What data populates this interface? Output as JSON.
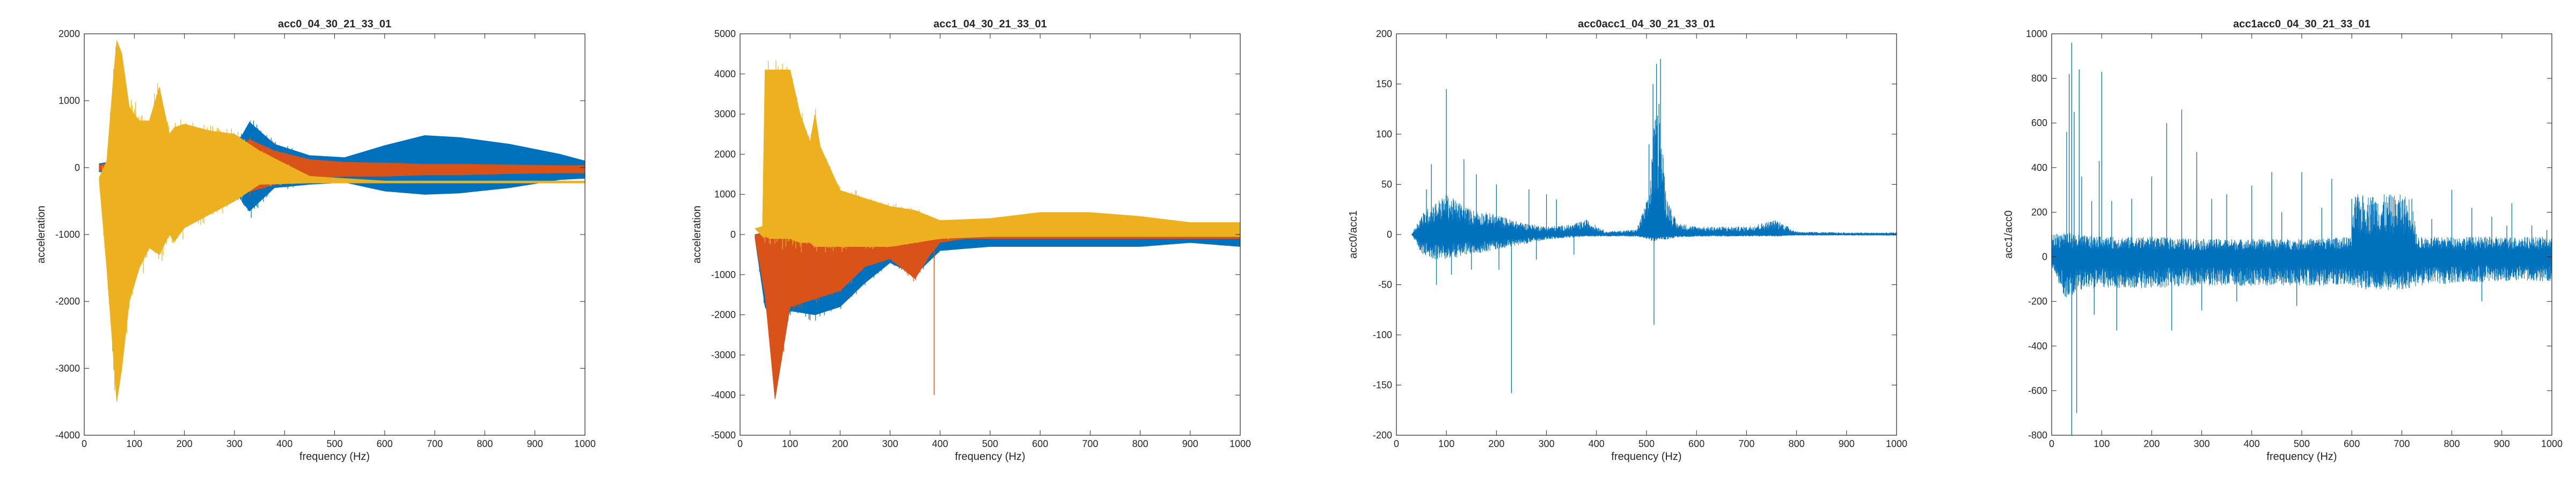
{
  "chart_data": [
    {
      "type": "area",
      "title": "acc0_04_30_21_33_01",
      "xlabel": "frequency (Hz)",
      "ylabel": "acceleration",
      "xlim": [
        0,
        1000
      ],
      "ylim": [
        -4000,
        2000
      ],
      "xticks": [
        0,
        100,
        200,
        300,
        400,
        500,
        600,
        700,
        800,
        900,
        1000
      ],
      "yticks": [
        -4000,
        -3000,
        -2000,
        -1000,
        0,
        1000,
        2000
      ],
      "grid": false,
      "colors": [
        "#0072BD",
        "#D95319",
        "#EDB120"
      ],
      "series": [
        {
          "x": [
            30,
            50,
            80,
            120,
            200,
            300,
            330,
            380,
            450,
            520,
            600,
            680,
            750,
            850,
            950,
            1000
          ],
          "upper": [
            60,
            80,
            250,
            250,
            220,
            280,
            680,
            350,
            180,
            150,
            330,
            480,
            450,
            350,
            200,
            100
          ],
          "lower": [
            -60,
            -80,
            -250,
            -250,
            -220,
            -350,
            -650,
            -300,
            -250,
            -220,
            -350,
            -400,
            -380,
            -300,
            -180,
            -160
          ]
        },
        {
          "x": [
            30,
            50,
            80,
            120,
            200,
            300,
            330,
            380,
            450,
            520,
            600,
            680,
            750,
            850,
            950,
            1000
          ],
          "upper": [
            40,
            60,
            200,
            200,
            220,
            250,
            420,
            250,
            120,
            80,
            70,
            50,
            50,
            40,
            30,
            30
          ],
          "lower": [
            -40,
            -60,
            -200,
            -200,
            -200,
            -200,
            -360,
            -250,
            -160,
            -130,
            -130,
            -110,
            -110,
            -90,
            -80,
            -80
          ]
        },
        {
          "x": [
            30,
            45,
            60,
            65,
            75,
            90,
            110,
            130,
            150,
            170,
            180,
            200,
            250,
            300,
            350,
            450,
            600,
            800,
            1000
          ],
          "upper": [
            -150,
            100,
            1500,
            1900,
            1700,
            900,
            700,
            700,
            1200,
            500,
            600,
            650,
            550,
            500,
            250,
            -130,
            -200,
            -200,
            -200
          ],
          "lower": [
            -200,
            -1500,
            -3000,
            -3500,
            -3000,
            -2000,
            -1500,
            -1200,
            -1300,
            -1000,
            -1100,
            -900,
            -700,
            -500,
            -250,
            -230,
            -230,
            -230,
            -230
          ]
        }
      ]
    },
    {
      "type": "area",
      "title": "acc1_04_30_21_33_01",
      "xlabel": "frequency (Hz)",
      "ylabel": "acceleration",
      "xlim": [
        0,
        1000
      ],
      "ylim": [
        -5000,
        5000
      ],
      "xticks": [
        0,
        100,
        200,
        300,
        400,
        500,
        600,
        700,
        800,
        900,
        1000
      ],
      "yticks": [
        -5000,
        -4000,
        -3000,
        -2000,
        -1000,
        0,
        1000,
        2000,
        3000,
        4000,
        5000
      ],
      "grid": false,
      "colors": [
        "#0072BD",
        "#D95319",
        "#EDB120"
      ],
      "series": [
        {
          "x": [
            30,
            50,
            80,
            100,
            150,
            200,
            250,
            300,
            350,
            400,
            500,
            600,
            700,
            800,
            900,
            1000
          ],
          "upper": [
            0,
            50,
            50,
            50,
            50,
            50,
            50,
            50,
            50,
            50,
            0,
            -50,
            -80,
            -50,
            -30,
            -50
          ],
          "lower": [
            -100,
            -1800,
            -2500,
            -1900,
            -2000,
            -1800,
            -1200,
            -700,
            -1000,
            -400,
            -300,
            -300,
            -300,
            -300,
            -200,
            -300
          ]
        },
        {
          "x": [
            30,
            50,
            70,
            100,
            150,
            200,
            250,
            300,
            350,
            380,
            400,
            450,
            500,
            600,
            700,
            800,
            900,
            1000
          ],
          "upper": [
            0,
            0,
            0,
            0,
            0,
            0,
            0,
            0,
            50,
            50,
            20,
            20,
            50,
            50,
            50,
            50,
            50,
            50
          ],
          "lower": [
            -100,
            -1500,
            -4100,
            -1800,
            -1600,
            -1400,
            -800,
            -600,
            -1100,
            -500,
            -200,
            -100,
            -100,
            -100,
            -100,
            -100,
            -100,
            -100
          ],
          "spike": [
            388,
            -4000
          ]
        },
        {
          "x": [
            30,
            45,
            50,
            60,
            100,
            120,
            140,
            150,
            160,
            200,
            250,
            300,
            350,
            400,
            500,
            600,
            700,
            800,
            900,
            1000
          ],
          "upper": [
            150,
            200,
            4100,
            4100,
            4100,
            3000,
            2300,
            3000,
            2200,
            1100,
            900,
            700,
            600,
            350,
            400,
            550,
            550,
            450,
            300,
            300
          ],
          "lower": [
            150,
            -50,
            -50,
            -100,
            -100,
            -200,
            -200,
            -300,
            -300,
            -300,
            -300,
            -300,
            -200,
            -100,
            -50,
            -50,
            -50,
            -50,
            -50,
            -50
          ]
        }
      ]
    },
    {
      "type": "line",
      "title": "acc0acc1_04_30_21_33_01",
      "xlabel": "frequency (Hz)",
      "ylabel": "acc0/acc1",
      "xlim": [
        0,
        1000
      ],
      "ylim": [
        -200,
        200
      ],
      "xticks": [
        0,
        100,
        200,
        300,
        400,
        500,
        600,
        700,
        800,
        900,
        1000
      ],
      "yticks": [
        -200,
        -150,
        -100,
        -50,
        0,
        50,
        100,
        150,
        200
      ],
      "grid": false,
      "colors": [
        "#0072BD"
      ],
      "envelope": {
        "x": [
          30,
          50,
          70,
          100,
          150,
          200,
          250,
          300,
          350,
          380,
          420,
          480,
          505,
          515,
          525,
          540,
          560,
          600,
          700,
          760,
          800,
          900,
          1000
        ],
        "upper": [
          0,
          20,
          30,
          40,
          25,
          20,
          12,
          8,
          10,
          15,
          3,
          5,
          40,
          110,
          130,
          40,
          12,
          8,
          8,
          15,
          3,
          2,
          2
        ],
        "lower": [
          0,
          -20,
          -25,
          -25,
          -20,
          -15,
          -10,
          -5,
          -3,
          -2,
          -2,
          -2,
          -5,
          -8,
          -5,
          -5,
          -3,
          -2,
          -2,
          -2,
          -1,
          -1,
          -1
        ]
      },
      "spikes": [
        [
          60,
          45
        ],
        [
          70,
          70
        ],
        [
          80,
          -50
        ],
        [
          100,
          145
        ],
        [
          110,
          -40
        ],
        [
          135,
          75
        ],
        [
          150,
          -35
        ],
        [
          160,
          60
        ],
        [
          200,
          50
        ],
        [
          205,
          -35
        ],
        [
          230,
          -158
        ],
        [
          265,
          45
        ],
        [
          280,
          -25
        ],
        [
          300,
          40
        ],
        [
          320,
          35
        ],
        [
          355,
          -20
        ],
        [
          505,
          90
        ],
        [
          513,
          150
        ],
        [
          520,
          170
        ],
        [
          525,
          130
        ],
        [
          528,
          175
        ],
        [
          515,
          -90
        ]
      ]
    },
    {
      "type": "line",
      "title": "acc1acc0_04_30_21_33_01",
      "xlabel": "frequency (Hz)",
      "ylabel": "acc1/acc0",
      "xlim": [
        0,
        1000
      ],
      "ylim": [
        -800,
        1000
      ],
      "xticks": [
        0,
        100,
        200,
        300,
        400,
        500,
        600,
        700,
        800,
        900,
        1000
      ],
      "yticks": [
        -800,
        -600,
        -400,
        -200,
        0,
        200,
        400,
        600,
        800,
        1000
      ],
      "grid": false,
      "colors": [
        "#0072BD"
      ],
      "envelope": {
        "x": [
          0,
          30,
          50,
          100,
          200,
          300,
          400,
          500,
          600,
          605,
          700,
          720,
          730,
          800,
          900,
          1000
        ],
        "upper": [
          100,
          120,
          100,
          90,
          90,
          80,
          80,
          80,
          90,
          280,
          280,
          270,
          90,
          90,
          90,
          90
        ],
        "lower": [
          -50,
          -200,
          -150,
          -140,
          -140,
          -130,
          -130,
          -130,
          -130,
          -150,
          -150,
          -140,
          -130,
          -120,
          -110,
          -110
        ]
      },
      "spikes": [
        [
          30,
          560
        ],
        [
          35,
          820
        ],
        [
          40,
          960
        ],
        [
          45,
          650
        ],
        [
          50,
          -700
        ],
        [
          55,
          840
        ],
        [
          40,
          -800
        ],
        [
          60,
          360
        ],
        [
          80,
          250
        ],
        [
          85,
          -260
        ],
        [
          95,
          430
        ],
        [
          100,
          830
        ],
        [
          120,
          250
        ],
        [
          130,
          -330
        ],
        [
          160,
          260
        ],
        [
          200,
          360
        ],
        [
          230,
          600
        ],
        [
          240,
          -330
        ],
        [
          260,
          660
        ],
        [
          290,
          470
        ],
        [
          300,
          -240
        ],
        [
          320,
          260
        ],
        [
          350,
          280
        ],
        [
          370,
          -200
        ],
        [
          400,
          320
        ],
        [
          440,
          380
        ],
        [
          460,
          200
        ],
        [
          490,
          -220
        ],
        [
          500,
          380
        ],
        [
          540,
          220
        ],
        [
          560,
          350
        ],
        [
          600,
          260
        ],
        [
          650,
          200
        ],
        [
          700,
          180
        ],
        [
          720,
          260
        ],
        [
          760,
          170
        ],
        [
          800,
          300
        ],
        [
          840,
          220
        ],
        [
          860,
          -200
        ],
        [
          880,
          180
        ],
        [
          910,
          140
        ],
        [
          920,
          240
        ],
        [
          960,
          140
        ],
        [
          990,
          120
        ]
      ]
    }
  ]
}
